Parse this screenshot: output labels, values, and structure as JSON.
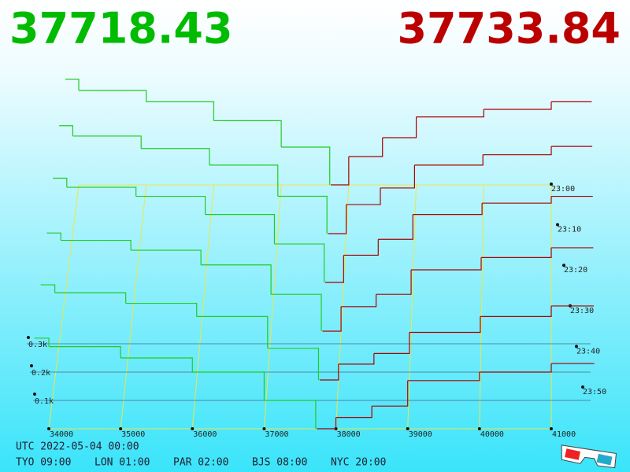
{
  "chart_data": {
    "type": "depth3d",
    "bid_price": 37718.43,
    "ask_price": 37733.84,
    "bid_color": "#00bb00",
    "ask_color": "#bb0000",
    "xlim": [
      33800,
      41600
    ],
    "xticks": [
      34000,
      35000,
      36000,
      37000,
      38000,
      39000,
      40000,
      41000
    ],
    "ylim": [
      0,
      0.6
    ],
    "yticks": [
      {
        "value": 0.1,
        "label": "0.1k"
      },
      {
        "value": 0.2,
        "label": "0.2k"
      },
      {
        "value": 0.3,
        "label": "0.3k"
      }
    ],
    "times": [
      "23:00",
      "23:10",
      "23:20",
      "23:30",
      "23:40",
      "23:50"
    ],
    "bids": {
      "color": "#22cc22",
      "x": [
        34000,
        35000,
        36000,
        37000,
        37500
      ],
      "rows": [
        [
          0.56,
          0.5,
          0.44,
          0.34,
          0.2
        ],
        [
          0.52,
          0.47,
          0.41,
          0.33,
          0.18
        ],
        [
          0.46,
          0.42,
          0.38,
          0.3,
          0.17
        ],
        [
          0.4,
          0.37,
          0.33,
          0.27,
          0.15
        ],
        [
          0.36,
          0.33,
          0.29,
          0.24,
          0.12
        ],
        [
          0.32,
          0.29,
          0.25,
          0.2,
          0.1
        ]
      ]
    },
    "asks": {
      "color": "#aa0000",
      "x": [
        38000,
        38500,
        39000,
        40000,
        41000
      ],
      "rows": [
        [
          0.15,
          0.25,
          0.36,
          0.4,
          0.44
        ],
        [
          0.14,
          0.22,
          0.33,
          0.38,
          0.42
        ],
        [
          0.12,
          0.19,
          0.3,
          0.35,
          0.38
        ],
        [
          0.1,
          0.15,
          0.25,
          0.3,
          0.34
        ],
        [
          0.06,
          0.1,
          0.18,
          0.24,
          0.28
        ],
        [
          0.04,
          0.08,
          0.17,
          0.2,
          0.23
        ]
      ]
    }
  },
  "footer": {
    "utc": "UTC 2022-05-04 00:00",
    "zones": [
      "TYO 09:00",
      "LON 01:00",
      "PAR 02:00",
      "BJS 08:00",
      "NYC 20:00"
    ]
  }
}
